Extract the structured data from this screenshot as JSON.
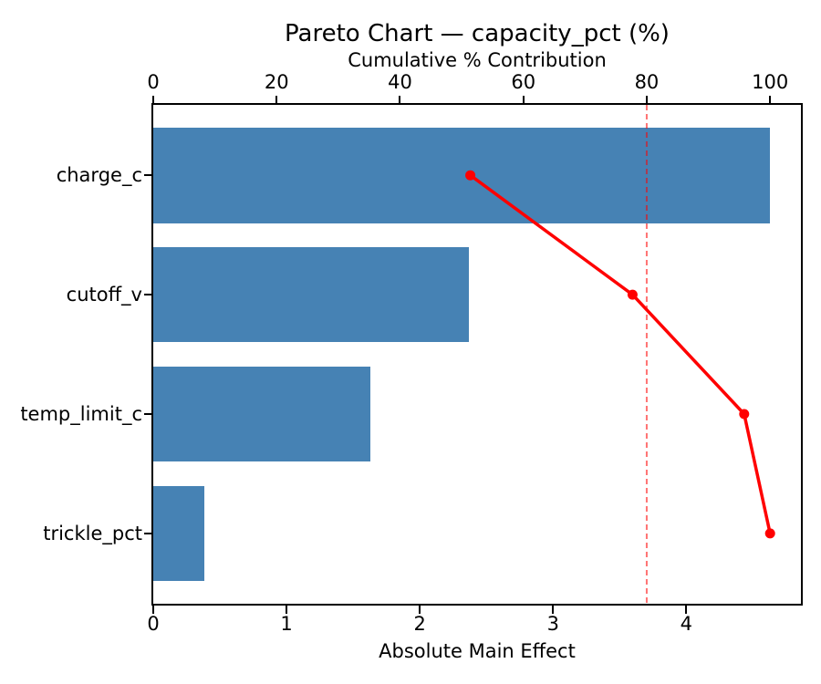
{
  "title": "Pareto Chart — capacity_pct (%)",
  "chart_data": {
    "type": "bar",
    "subtype": "pareto",
    "orientation": "horizontal",
    "title": "Pareto Chart — capacity_pct (%)",
    "categories": [
      "charge_c",
      "cutoff_v",
      "temp_limit_c",
      "trickle_pct"
    ],
    "series": [
      {
        "name": "Absolute Main Effect",
        "type": "bar",
        "axis": "bottom",
        "values": [
          4.63,
          2.37,
          1.63,
          0.38
        ]
      },
      {
        "name": "Cumulative % Contribution",
        "type": "line",
        "axis": "top",
        "values": [
          51.4,
          77.7,
          95.8,
          100.0
        ]
      }
    ],
    "bottom_axis": {
      "label": "Absolute Main Effect",
      "ticks": [
        0,
        1,
        2,
        3,
        4
      ],
      "range": [
        0,
        4.86
      ]
    },
    "top_axis": {
      "label": "Cumulative % Contribution",
      "ticks": [
        0,
        20,
        40,
        60,
        80,
        100
      ],
      "range": [
        0,
        105
      ]
    },
    "threshold_pct": 80,
    "colors": {
      "bar": "#4682B4",
      "line": "#FF0000",
      "marker": "#FF0000",
      "threshold": "#FF0000",
      "threshold_opacity": 0.55,
      "spine": "#000000",
      "text": "#000000"
    },
    "grid": false,
    "legend": null
  }
}
